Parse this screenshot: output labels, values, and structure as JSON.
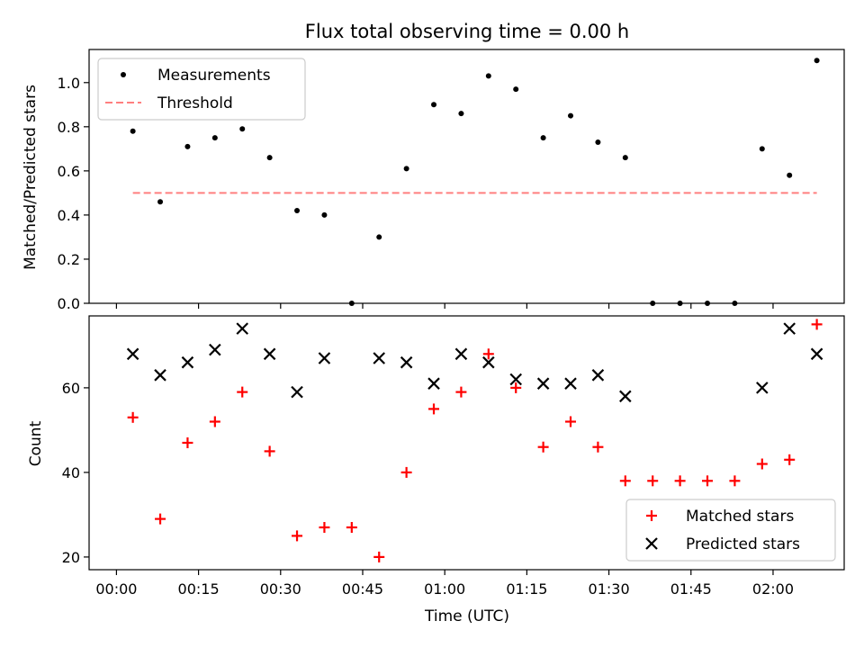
{
  "figure": {
    "title": "Flux total observing time = 0.00 h"
  },
  "chart_data": [
    {
      "type": "scatter",
      "ylabel": "Matched/Predicted stars",
      "xlabel": "",
      "x_axis": "time",
      "ylim": [
        0,
        1.15
      ],
      "yticks": [
        "0.0",
        "0.2",
        "0.4",
        "0.6",
        "0.8",
        "1.0"
      ],
      "ytick_values": [
        0,
        0.2,
        0.4,
        0.6,
        0.8,
        1.0
      ],
      "legend_position": "upper-left",
      "grid": false,
      "series": [
        {
          "name": "Measurements",
          "marker": "dot",
          "color": "#000000",
          "x": [
            "00:03",
            "00:08",
            "00:13",
            "00:18",
            "00:23",
            "00:28",
            "00:33",
            "00:38",
            "00:43",
            "00:48",
            "00:53",
            "00:58",
            "01:03",
            "01:08",
            "01:13",
            "01:18",
            "01:23",
            "01:28",
            "01:33",
            "01:38",
            "01:43",
            "01:48",
            "01:53",
            "01:58",
            "02:03",
            "02:08"
          ],
          "values": [
            0.78,
            0.46,
            0.71,
            0.75,
            0.79,
            0.66,
            0.42,
            0.4,
            0.0,
            0.3,
            0.61,
            0.9,
            0.86,
            1.03,
            0.97,
            0.75,
            0.85,
            0.73,
            0.66,
            0.0,
            0.0,
            0.0,
            0.0,
            0.7,
            0.58,
            1.1
          ]
        },
        {
          "name": "Threshold",
          "marker": "dashed-line",
          "color": "#ff7f7f",
          "x": [
            "00:03",
            "02:08"
          ],
          "values": [
            0.5,
            0.5
          ]
        }
      ]
    },
    {
      "type": "scatter",
      "ylabel": "Count",
      "xlabel": "Time (UTC)",
      "x_axis": "time",
      "ylim": [
        17,
        77
      ],
      "yticks": [
        "20",
        "40",
        "60"
      ],
      "ytick_values": [
        20,
        40,
        60
      ],
      "xticks": [
        "00:00",
        "00:15",
        "00:30",
        "00:45",
        "01:00",
        "01:15",
        "01:30",
        "01:45",
        "02:00"
      ],
      "legend_position": "lower-right",
      "grid": false,
      "series": [
        {
          "name": "Matched stars",
          "marker": "plus",
          "color": "#ff0000",
          "x": [
            "00:03",
            "00:08",
            "00:13",
            "00:18",
            "00:23",
            "00:28",
            "00:33",
            "00:38",
            "00:43",
            "00:48",
            "00:53",
            "00:58",
            "01:03",
            "01:08",
            "01:13",
            "01:18",
            "01:23",
            "01:28",
            "01:33",
            "01:38",
            "01:43",
            "01:48",
            "01:53",
            "01:58",
            "02:03",
            "02:08"
          ],
          "values": [
            53,
            29,
            47,
            52,
            59,
            45,
            25,
            27,
            27,
            20,
            40,
            55,
            59,
            68,
            60,
            46,
            52,
            46,
            38,
            38,
            38,
            38,
            38,
            42,
            43,
            75
          ]
        },
        {
          "name": "Predicted stars",
          "marker": "x",
          "color": "#000000",
          "x": [
            "00:03",
            "00:08",
            "00:13",
            "00:18",
            "00:23",
            "00:28",
            "00:33",
            "00:38",
            "00:48",
            "00:53",
            "00:58",
            "01:03",
            "01:08",
            "01:13",
            "01:18",
            "01:23",
            "01:28",
            "01:33",
            "01:58",
            "02:03",
            "02:08"
          ],
          "values": [
            68,
            63,
            66,
            69,
            74,
            68,
            59,
            67,
            67,
            66,
            61,
            68,
            66,
            62,
            61,
            61,
            63,
            58,
            60,
            74,
            68
          ]
        }
      ]
    }
  ]
}
